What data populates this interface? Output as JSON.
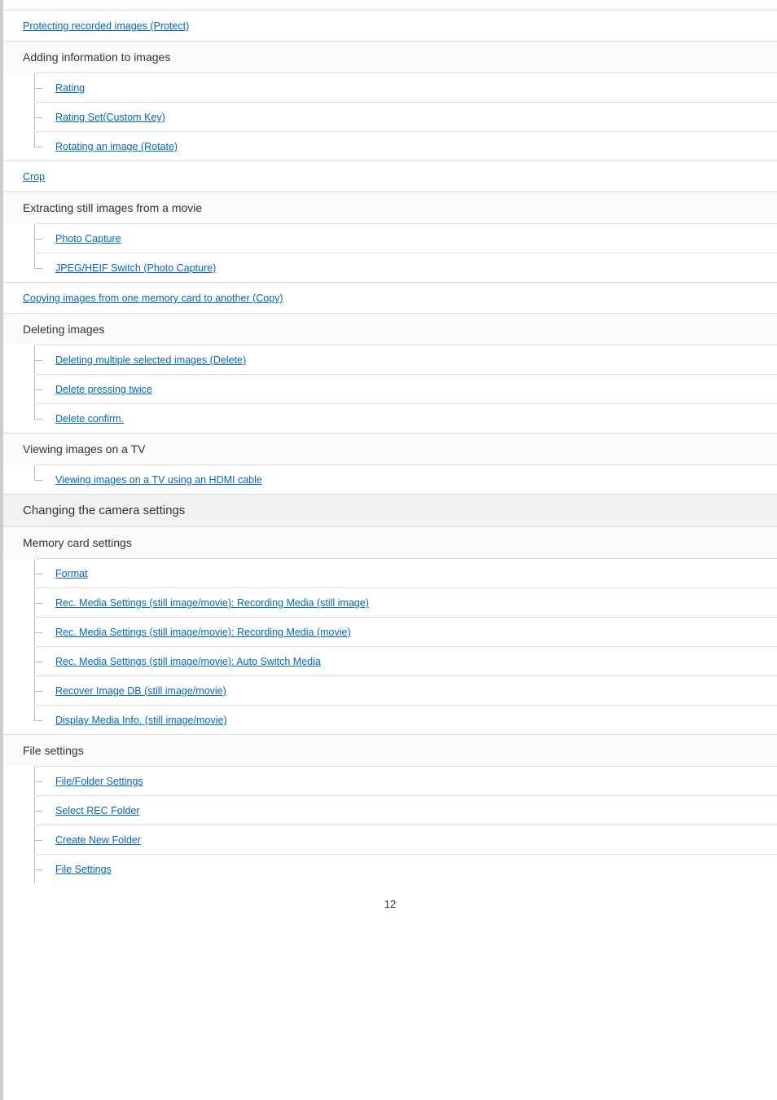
{
  "items": {
    "protect": "Protecting recorded images (Protect)",
    "adding_info": "Adding information to images",
    "rating": "Rating",
    "rating_set": "Rating Set(Custom Key)",
    "rotating": "Rotating an image (Rotate)",
    "crop": "Crop",
    "extracting": "Extracting still images from a movie",
    "photo_capture": "Photo Capture",
    "jpeg_heif": "JPEG/HEIF Switch (Photo Capture)",
    "copying": "Copying images from one memory card to another (Copy)",
    "deleting": "Deleting images",
    "delete_multiple": "Deleting multiple selected images (Delete)",
    "delete_twice": "Delete pressing twice",
    "delete_confirm": "Delete confirm.",
    "viewing_tv": "Viewing images on a TV",
    "viewing_hdmi": "Viewing images on a TV using an HDMI cable",
    "changing_settings": "Changing the camera settings",
    "memory_card": "Memory card settings",
    "format": "Format",
    "rec_media_still": "Rec. Media Settings (still image/movie): Recording Media (still image)",
    "rec_media_movie": "Rec. Media Settings (still image/movie): Recording Media (movie)",
    "rec_media_auto": "Rec. Media Settings (still image/movie): Auto Switch Media",
    "recover_db": "Recover Image DB (still image/movie)",
    "display_media": "Display Media Info. (still image/movie)",
    "file_settings_h": "File settings",
    "file_folder": "File/Folder Settings",
    "select_rec": "Select REC Folder",
    "create_folder": "Create New Folder",
    "file_settings": "File Settings"
  },
  "page_number": "12",
  "colors": {
    "link": "#0066cc",
    "border": "#dddddd",
    "leftbar": "#cccccc",
    "heading_bg": "#fafafa",
    "section_bg": "#f2f2f2"
  }
}
